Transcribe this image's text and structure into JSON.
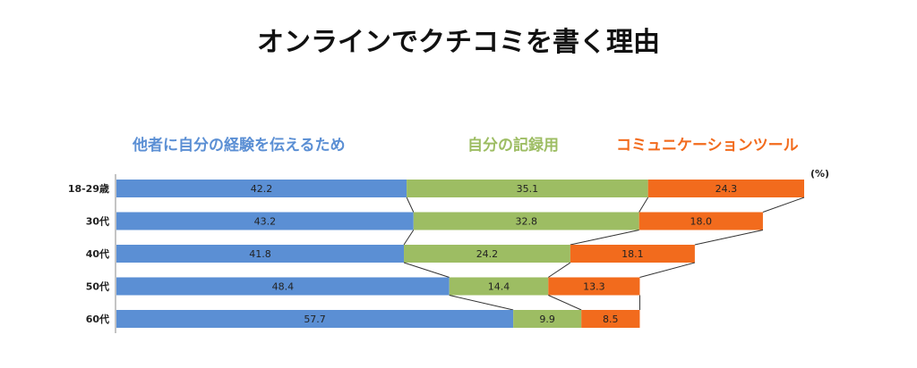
{
  "chart_data": {
    "type": "bar",
    "stacked": true,
    "orientation": "horizontal",
    "title": "オンラインでクチコミを書く理由",
    "unit_label": "(%)",
    "categories": [
      "18-29歳",
      "30代",
      "40代",
      "50代",
      "60代"
    ],
    "series": [
      {
        "name": "他者に自分の経験を伝えるため",
        "color": "#5b8fd4",
        "values": [
          42.2,
          43.2,
          41.8,
          48.4,
          57.7
        ]
      },
      {
        "name": "自分の記録用",
        "color": "#9dbd63",
        "values": [
          35.1,
          32.8,
          24.2,
          14.4,
          9.9
        ]
      },
      {
        "name": "コミュニケーションツール",
        "color": "#f26b1d",
        "values": [
          24.3,
          18.0,
          18.1,
          13.3,
          8.5
        ]
      }
    ],
    "legend_position": "top",
    "series_lines": true
  }
}
